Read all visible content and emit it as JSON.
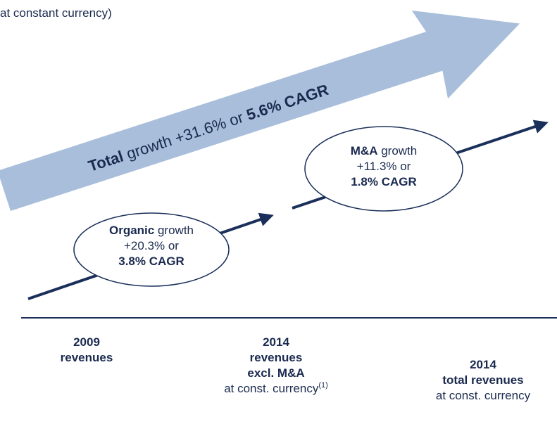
{
  "header": {
    "subtitle": "at constant currency)"
  },
  "total_arrow": {
    "lead": "Total",
    "middle": "growth +31.6% or",
    "cagr": "5.6% CAGR"
  },
  "organic": {
    "lead": "Organic",
    "rest": "growth",
    "change": "+20.3% or",
    "cagr": "3.8% CAGR"
  },
  "ma": {
    "lead": "M&A",
    "rest": "growth",
    "change": "+11.3% or",
    "cagr": "1.8% CAGR"
  },
  "columns": [
    {
      "year": "2009",
      "label": "revenues"
    },
    {
      "year": "2014",
      "label": "revenues",
      "label2": "excl. M&A",
      "note": "at const. currency",
      "footnote": "(1)"
    },
    {
      "year": "2014",
      "label": "total revenues",
      "note": "at const. currency"
    }
  ]
}
